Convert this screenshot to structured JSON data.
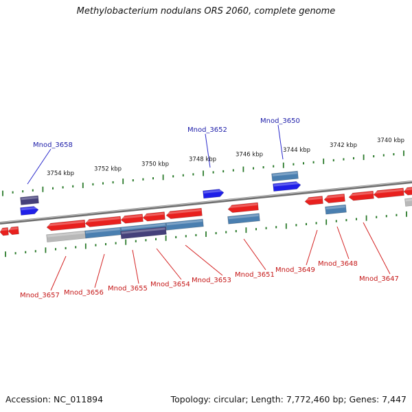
{
  "title": "Methylobacterium nodulans ORS 2060, complete genome",
  "footer": {
    "accession": "Accession: NC_011894",
    "summary": "Topology: circular; Length: 7,772,460 bp; Genes: 7,447"
  },
  "colors": {
    "background": "#ffffff",
    "backbone": "#7a7a7a",
    "tick": "#2a7a2a",
    "cds_red": "#e8201e",
    "cds_blue": "#1f1fe8",
    "steel_blue": "#4a7fb0",
    "dark_purple": "#45407a",
    "gray_feature": "#b8b8b8",
    "label_blue": "#1a1aa8",
    "label_red": "#c41414"
  },
  "scale_labels": [
    "3754 kbp",
    "3752 kbp",
    "3750 kbp",
    "3748 kbp",
    "3746 kbp",
    "3744 kbp",
    "3742 kbp",
    "3740 kbp"
  ],
  "top_genes": [
    {
      "name": "Mnod_3658",
      "color": "label_blue"
    },
    {
      "name": "Mnod_3652",
      "color": "label_blue"
    },
    {
      "name": "Mnod_3650",
      "color": "label_blue"
    }
  ],
  "bottom_genes": [
    {
      "name": "Mnod_3657",
      "color": "label_red"
    },
    {
      "name": "Mnod_3656",
      "color": "label_red"
    },
    {
      "name": "Mnod_3655",
      "color": "label_red"
    },
    {
      "name": "Mnod_3654",
      "color": "label_red"
    },
    {
      "name": "Mnod_3653",
      "color": "label_red"
    },
    {
      "name": "Mnod_3651",
      "color": "label_red"
    },
    {
      "name": "Mnod_3649",
      "color": "label_red"
    },
    {
      "name": "Mnod_3648",
      "color": "label_red"
    },
    {
      "name": "Mnod_3647",
      "color": "label_red"
    }
  ]
}
